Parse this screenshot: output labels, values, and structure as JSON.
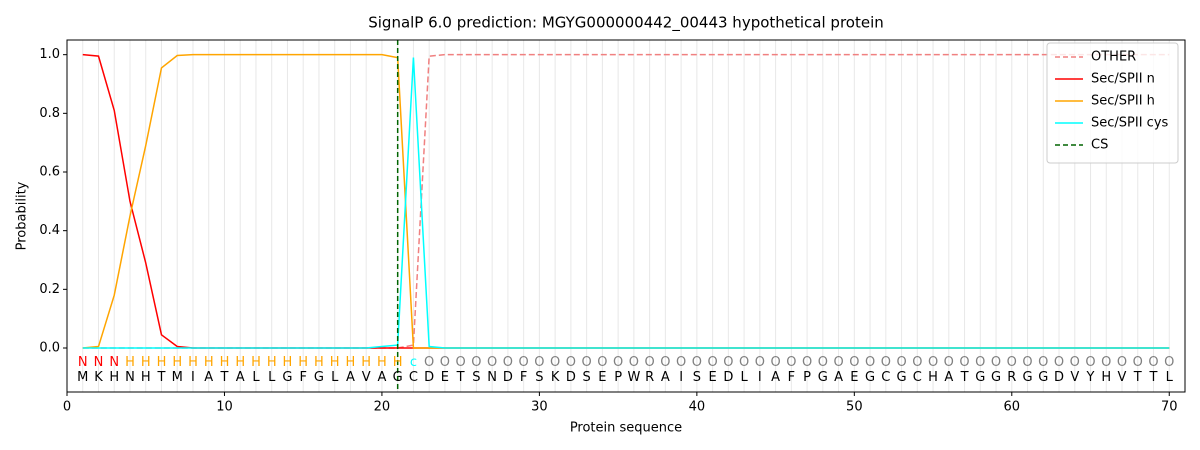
{
  "chart_data": {
    "type": "line",
    "title": "SignalP 6.0 prediction: MGYG000000442_00443 hypothetical protein",
    "xlabel": "Protein sequence",
    "ylabel": "Probability",
    "xlim": [
      0,
      71
    ],
    "ylim": [
      -0.15,
      1.05
    ],
    "xticks": [
      0,
      10,
      20,
      30,
      40,
      50,
      60,
      70
    ],
    "yticks": [
      {
        "value": 0,
        "label": "0.0"
      },
      0.2,
      0.4,
      0.6,
      0.8,
      {
        "value": 1,
        "label": "1.0"
      }
    ],
    "x": [
      1,
      2,
      3,
      4,
      5,
      6,
      7,
      8,
      9,
      10,
      11,
      12,
      13,
      14,
      15,
      16,
      17,
      18,
      19,
      20,
      21,
      22,
      23,
      24,
      25,
      26,
      27,
      28,
      29,
      30,
      31,
      32,
      33,
      34,
      35,
      36,
      37,
      38,
      39,
      40,
      41,
      42,
      43,
      44,
      45,
      46,
      47,
      48,
      49,
      50,
      51,
      52,
      53,
      54,
      55,
      56,
      57,
      58,
      59,
      60,
      61,
      62,
      63,
      64,
      65,
      66,
      67,
      68,
      69,
      70
    ],
    "sequence": [
      "M",
      "K",
      "H",
      "N",
      "H",
      "T",
      "M",
      "I",
      "A",
      "T",
      "A",
      "L",
      "L",
      "G",
      "F",
      "G",
      "L",
      "A",
      "V",
      "A",
      "G",
      "C",
      "D",
      "E",
      "T",
      "S",
      "N",
      "D",
      "F",
      "S",
      "K",
      "D",
      "S",
      "E",
      "P",
      "W",
      "R",
      "A",
      "I",
      "S",
      "E",
      "D",
      "L",
      "I",
      "A",
      "F",
      "P",
      "G",
      "A",
      "E",
      "G",
      "C",
      "G",
      "C",
      "H",
      "A",
      "T",
      "G",
      "G",
      "R",
      "G",
      "G",
      "D",
      "V",
      "Y",
      "H",
      "V",
      "T",
      "T",
      "L"
    ],
    "regions": [
      "N",
      "N",
      "N",
      "H",
      "H",
      "H",
      "H",
      "H",
      "H",
      "H",
      "H",
      "H",
      "H",
      "H",
      "H",
      "H",
      "H",
      "H",
      "H",
      "H",
      "H",
      "c",
      "O",
      "O",
      "O",
      "O",
      "O",
      "O",
      "O",
      "O",
      "O",
      "O",
      "O",
      "O",
      "O",
      "O",
      "O",
      "O",
      "O",
      "O",
      "O",
      "O",
      "O",
      "O",
      "O",
      "O",
      "O",
      "O",
      "O",
      "O",
      "O",
      "O",
      "O",
      "O",
      "O",
      "O",
      "O",
      "O",
      "O",
      "O",
      "O",
      "O",
      "O",
      "O",
      "O",
      "O",
      "O",
      "O",
      "O",
      "O"
    ],
    "region_colors": {
      "N": "#ff0000",
      "H": "#ffa500",
      "c": "#00ffff",
      "O": "#808080"
    },
    "legend": "upper right",
    "series": [
      {
        "name": "OTHER",
        "color": "#f08080",
        "linestyle": "dashed",
        "values": [
          0,
          0,
          0,
          0,
          0,
          0,
          0,
          0,
          0,
          0,
          0,
          0,
          0,
          0,
          0,
          0,
          0,
          0,
          0,
          0,
          0,
          0.01,
          0.995,
          1,
          1,
          1,
          1,
          1,
          1,
          1,
          1,
          1,
          1,
          1,
          1,
          1,
          1,
          1,
          1,
          1,
          1,
          1,
          1,
          1,
          1,
          1,
          1,
          1,
          1,
          1,
          1,
          1,
          1,
          1,
          1,
          1,
          1,
          1,
          1,
          1,
          1,
          1,
          1,
          1,
          1,
          1,
          1,
          1,
          1,
          1
        ]
      },
      {
        "name": "Sec/SPII n",
        "color": "#ff0000",
        "linestyle": "solid",
        "values": [
          1,
          0.995,
          0.81,
          0.5,
          0.29,
          0.045,
          0.005,
          0,
          0,
          0,
          0,
          0,
          0,
          0,
          0,
          0,
          0,
          0,
          0,
          0,
          0,
          0,
          0,
          0,
          0,
          0,
          0,
          0,
          0,
          0,
          0,
          0,
          0,
          0,
          0,
          0,
          0,
          0,
          0,
          0,
          0,
          0,
          0,
          0,
          0,
          0,
          0,
          0,
          0,
          0,
          0,
          0,
          0,
          0,
          0,
          0,
          0,
          0,
          0,
          0,
          0,
          0,
          0,
          0,
          0,
          0,
          0,
          0,
          0,
          0
        ]
      },
      {
        "name": "Sec/SPII h",
        "color": "#ffa500",
        "linestyle": "solid",
        "values": [
          0,
          0.005,
          0.18,
          0.45,
          0.69,
          0.955,
          0.997,
          1,
          1,
          1,
          1,
          1,
          1,
          1,
          1,
          1,
          1,
          1,
          1,
          1,
          0.99,
          0,
          0,
          0,
          0,
          0,
          0,
          0,
          0,
          0,
          0,
          0,
          0,
          0,
          0,
          0,
          0,
          0,
          0,
          0,
          0,
          0,
          0,
          0,
          0,
          0,
          0,
          0,
          0,
          0,
          0,
          0,
          0,
          0,
          0,
          0,
          0,
          0,
          0,
          0,
          0,
          0,
          0,
          0,
          0,
          0,
          0,
          0,
          0,
          0
        ]
      },
      {
        "name": "Sec/SPII cys",
        "color": "#00ffff",
        "linestyle": "solid",
        "values": [
          0,
          0,
          0,
          0,
          0,
          0,
          0,
          0,
          0,
          0,
          0,
          0,
          0,
          0,
          0,
          0,
          0,
          0,
          0,
          0.005,
          0.01,
          0.99,
          0.005,
          0,
          0,
          0,
          0,
          0,
          0,
          0,
          0,
          0,
          0,
          0,
          0,
          0,
          0,
          0,
          0,
          0,
          0,
          0,
          0,
          0,
          0,
          0,
          0,
          0,
          0,
          0,
          0,
          0,
          0,
          0,
          0,
          0,
          0,
          0,
          0,
          0,
          0,
          0,
          0,
          0,
          0,
          0,
          0,
          0,
          0,
          0
        ]
      }
    ],
    "markers": [
      {
        "name": "CS",
        "color": "#006400",
        "x": 21
      }
    ]
  }
}
